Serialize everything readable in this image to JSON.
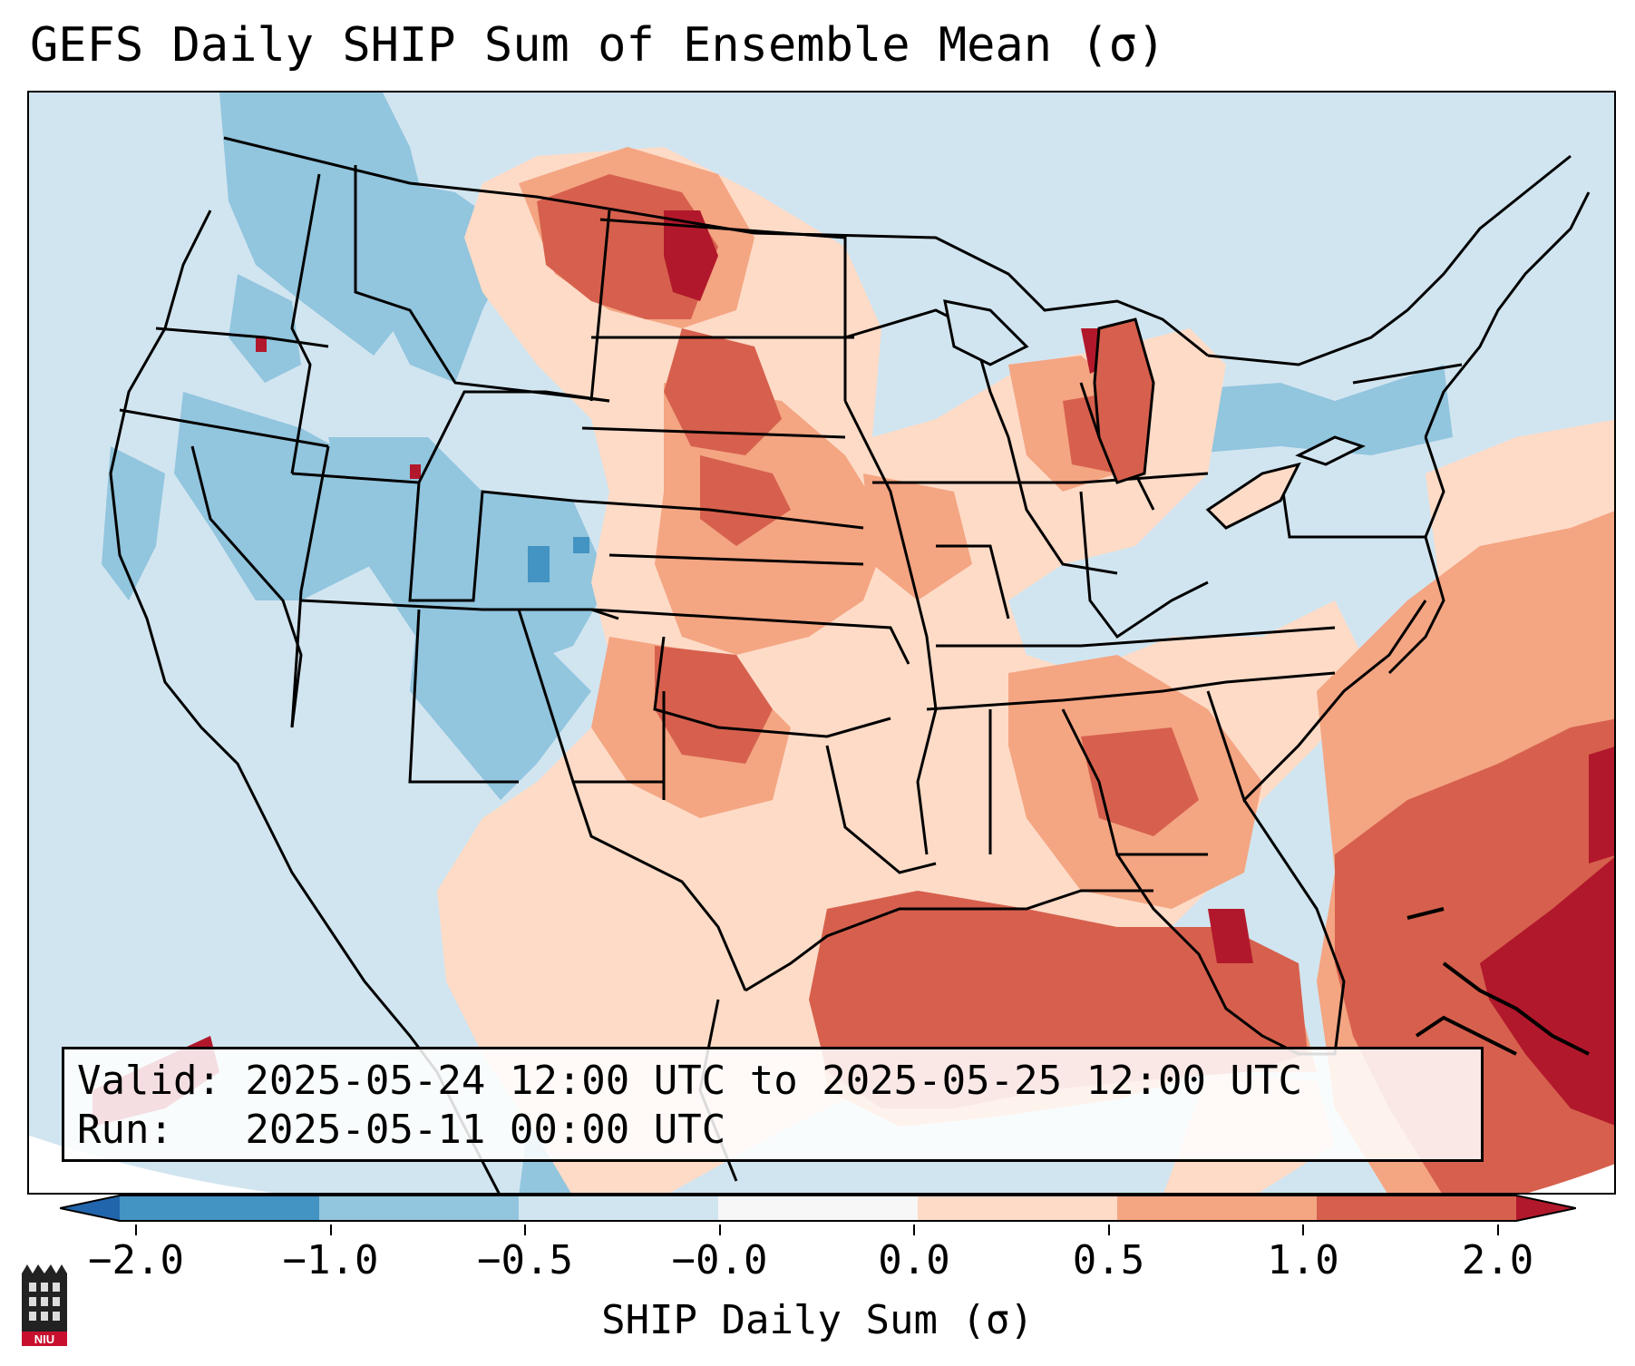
{
  "title": "GEFS Daily SHIP Sum of Ensemble Mean (σ)",
  "info": {
    "valid_line": "Valid: 2025-05-24 12:00 UTC to 2025-05-25 12:00 UTC",
    "run_line": "Run:   2025-05-11 00:00 UTC"
  },
  "colorbar": {
    "label": "SHIP Daily Sum (σ)",
    "ticks": [
      "−2.0",
      "−1.0",
      "−0.5",
      "−0.0",
      "0.0",
      "0.5",
      "1.0",
      "2.0"
    ],
    "bins": [
      {
        "name": "below -2.0",
        "color": "#2166ac"
      },
      {
        "name": "-2.0 to -1.0",
        "color": "#4393c3"
      },
      {
        "name": "-1.0 to -0.5",
        "color": "#92c5de"
      },
      {
        "name": "-0.5 to 0.0",
        "color": "#d1e5f0"
      },
      {
        "name": "0.0",
        "color": "#f7f7f7"
      },
      {
        "name": "0.0 to 0.5",
        "color": "#fddbc7"
      },
      {
        "name": "0.5 to 1.0",
        "color": "#f4a582"
      },
      {
        "name": "1.0 to 2.0",
        "color": "#d6604d"
      },
      {
        "name": "above 2.0",
        "color": "#b2182b"
      }
    ]
  },
  "logo": {
    "text": "NIU",
    "icon": "niu-logo-icon"
  }
}
